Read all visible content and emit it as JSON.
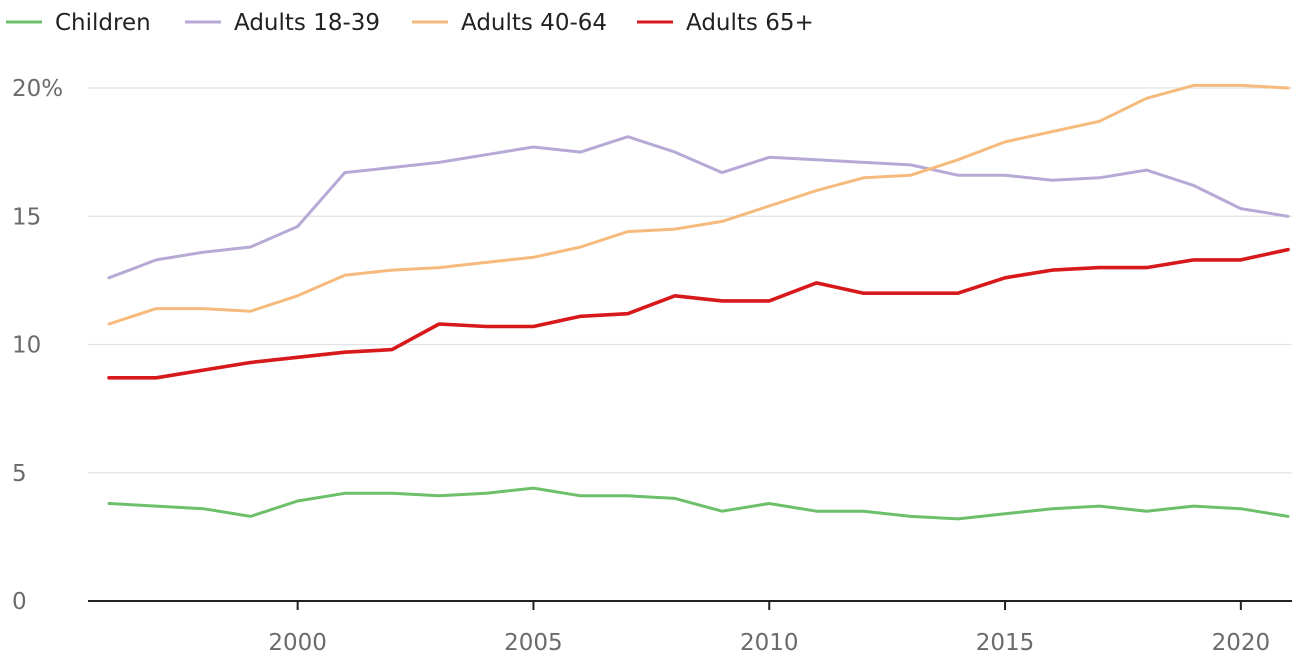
{
  "chart_data": {
    "type": "line",
    "title": "",
    "xlabel": "",
    "ylabel": "",
    "x": [
      1996,
      1997,
      1998,
      1999,
      2000,
      2001,
      2002,
      2003,
      2004,
      2005,
      2006,
      2007,
      2008,
      2009,
      2010,
      2011,
      2012,
      2013,
      2014,
      2015,
      2016,
      2017,
      2018,
      2019,
      2020,
      2021
    ],
    "xlim": [
      1996,
      2021
    ],
    "ylim": [
      0,
      20
    ],
    "x_ticks": [
      2000,
      2005,
      2010,
      2015,
      2020
    ],
    "x_tick_labels": [
      "2000",
      "2005",
      "2010",
      "2015",
      "2020"
    ],
    "y_ticks": [
      0,
      5,
      10,
      15,
      20
    ],
    "y_tick_labels": [
      "0",
      "5",
      "10",
      "15",
      "20%"
    ],
    "grid": "horizontal",
    "legend_position": "top-left",
    "series": [
      {
        "name": "Children",
        "color": "#6dbf6a",
        "values": [
          3.8,
          3.7,
          3.6,
          3.3,
          3.9,
          4.2,
          4.2,
          4.1,
          4.2,
          4.4,
          4.1,
          4.1,
          4.0,
          3.5,
          3.8,
          3.5,
          3.5,
          3.3,
          3.2,
          3.4,
          3.6,
          3.7,
          3.5,
          3.7,
          3.6,
          3.3
        ]
      },
      {
        "name": "Adults 18-39",
        "color": "#b7a9d6",
        "values": [
          12.6,
          13.3,
          13.6,
          13.8,
          14.6,
          16.7,
          16.9,
          17.1,
          17.4,
          17.7,
          17.5,
          18.1,
          17.5,
          16.7,
          17.3,
          17.2,
          17.1,
          17.0,
          16.6,
          16.6,
          16.4,
          16.5,
          16.8,
          16.2,
          15.3,
          15.0
        ]
      },
      {
        "name": "Adults 40-64",
        "color": "#f6bb7c",
        "values": [
          10.8,
          11.4,
          11.4,
          11.3,
          11.9,
          12.7,
          12.9,
          13.0,
          13.2,
          13.4,
          13.8,
          14.4,
          14.5,
          14.8,
          15.4,
          16.0,
          16.5,
          16.6,
          17.2,
          17.9,
          18.3,
          18.7,
          19.6,
          20.1,
          20.1,
          20.0
        ]
      },
      {
        "name": "Adults 65+",
        "color": "#d7191c",
        "values": [
          8.7,
          8.7,
          9.0,
          9.3,
          9.5,
          9.7,
          9.8,
          10.8,
          10.7,
          10.7,
          11.1,
          11.2,
          11.9,
          11.7,
          11.7,
          12.4,
          12.0,
          12.0,
          12.0,
          12.6,
          12.9,
          13.0,
          13.0,
          13.3,
          13.3,
          13.7
        ]
      }
    ]
  }
}
